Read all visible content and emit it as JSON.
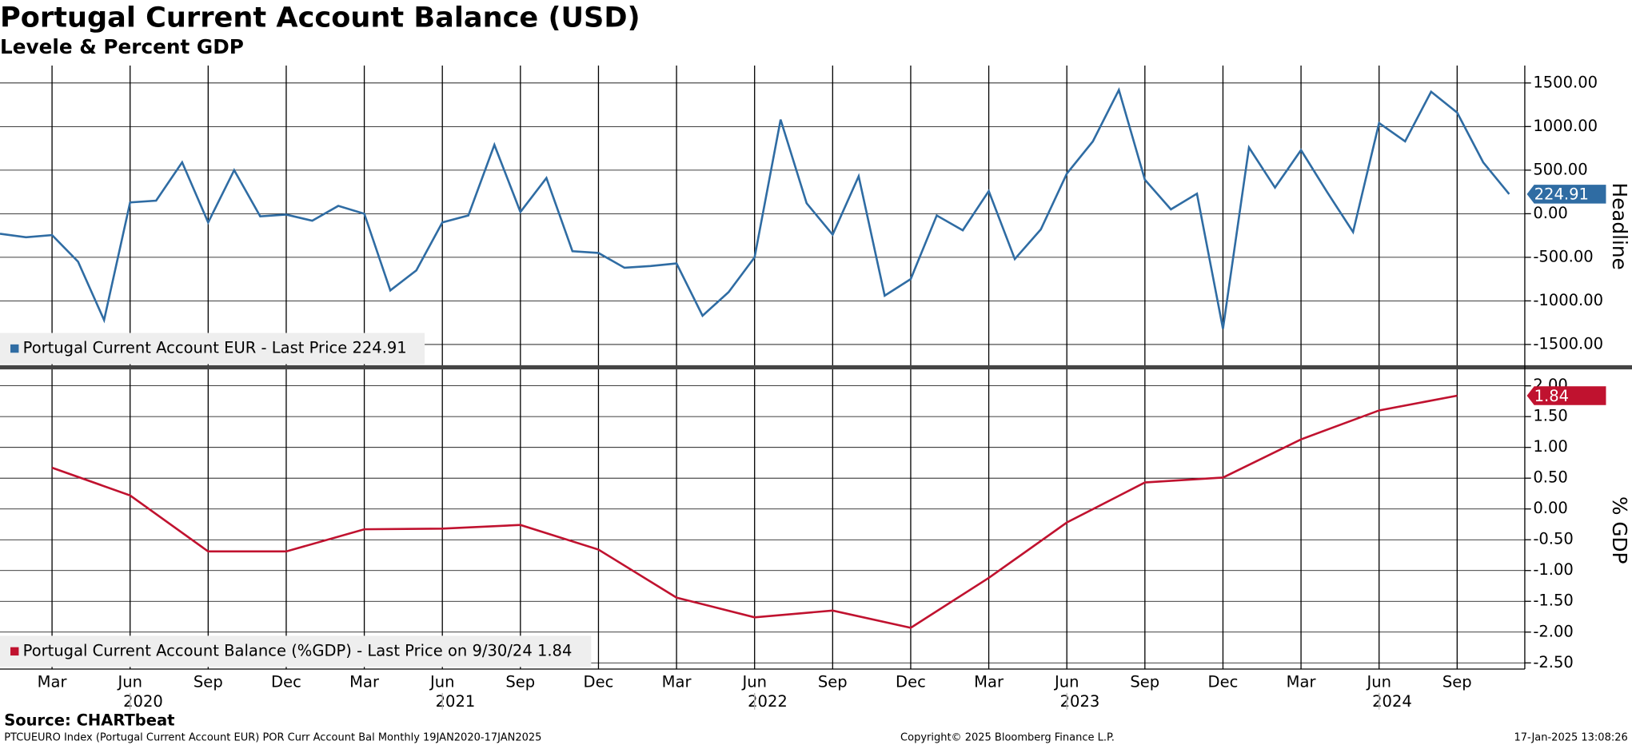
{
  "title": "Portugal Current Account Balance (USD)",
  "subtitle": "Levele & Percent GDP",
  "x_axis": {
    "month_ticks": [
      {
        "value": "2020-03",
        "label": "Mar"
      },
      {
        "value": "2020-06",
        "label": "Jun"
      },
      {
        "value": "2020-09",
        "label": "Sep"
      },
      {
        "value": "2020-12",
        "label": "Dec"
      },
      {
        "value": "2021-03",
        "label": "Mar"
      },
      {
        "value": "2021-06",
        "label": "Jun"
      },
      {
        "value": "2021-09",
        "label": "Sep"
      },
      {
        "value": "2021-12",
        "label": "Dec"
      },
      {
        "value": "2022-03",
        "label": "Mar"
      },
      {
        "value": "2022-06",
        "label": "Jun"
      },
      {
        "value": "2022-09",
        "label": "Sep"
      },
      {
        "value": "2022-12",
        "label": "Dec"
      },
      {
        "value": "2023-03",
        "label": "Mar"
      },
      {
        "value": "2023-06",
        "label": "Jun"
      },
      {
        "value": "2023-09",
        "label": "Sep"
      },
      {
        "value": "2023-12",
        "label": "Dec"
      },
      {
        "value": "2024-03",
        "label": "Mar"
      },
      {
        "value": "2024-06",
        "label": "Jun"
      },
      {
        "value": "2024-09",
        "label": "Sep"
      }
    ],
    "year_ticks": [
      2020,
      2021,
      2022,
      2023,
      2024
    ]
  },
  "chart_data": [
    {
      "type": "line",
      "ylabel": "Headline",
      "x": [
        "2020-01",
        "2020-02",
        "2020-03",
        "2020-04",
        "2020-05",
        "2020-06",
        "2020-07",
        "2020-08",
        "2020-09",
        "2020-10",
        "2020-11",
        "2020-12",
        "2021-01",
        "2021-02",
        "2021-03",
        "2021-04",
        "2021-05",
        "2021-06",
        "2021-07",
        "2021-08",
        "2021-09",
        "2021-10",
        "2021-11",
        "2021-12",
        "2022-01",
        "2022-02",
        "2022-03",
        "2022-04",
        "2022-05",
        "2022-06",
        "2022-07",
        "2022-08",
        "2022-09",
        "2022-10",
        "2022-11",
        "2022-12",
        "2023-01",
        "2023-02",
        "2023-03",
        "2023-04",
        "2023-05",
        "2023-06",
        "2023-07",
        "2023-08",
        "2023-09",
        "2023-10",
        "2023-11",
        "2023-12",
        "2024-01",
        "2024-02",
        "2024-03",
        "2024-04",
        "2024-05",
        "2024-06",
        "2024-07",
        "2024-08",
        "2024-09",
        "2024-10",
        "2024-11"
      ],
      "series": [
        {
          "name": "Portugal Current Account EUR - Last Price 224.91",
          "color": "#2f6ca3",
          "values": [
            -230,
            -270,
            -245,
            -550,
            -1220,
            130,
            150,
            590,
            -100,
            500,
            -30,
            -10,
            -80,
            90,
            0,
            -880,
            -650,
            -100,
            -20,
            790,
            20,
            410,
            -430,
            -450,
            -620,
            -600,
            -570,
            -1170,
            -900,
            -500,
            1080,
            120,
            -240,
            430,
            -940,
            -750,
            -20,
            -190,
            260,
            -520,
            -180,
            460,
            830,
            1420,
            390,
            50,
            230,
            -1320,
            760,
            300,
            730,
            250,
            -210,
            1040,
            830,
            1400,
            1160,
            590,
            224.91
          ]
        }
      ],
      "last_price": 224.91,
      "ylim": [
        -1750,
        1700
      ],
      "yticks": [
        {
          "value": 1500,
          "label": "1500.00"
        },
        {
          "value": 1000,
          "label": "1000.00"
        },
        {
          "value": 500,
          "label": "500.00"
        },
        {
          "value": 0,
          "label": "0.00"
        },
        {
          "value": -500,
          "label": "-500.00"
        },
        {
          "value": -1000,
          "label": "-1000.00"
        },
        {
          "value": -1500,
          "label": "-1500.00"
        }
      ],
      "grid": true
    },
    {
      "type": "line",
      "ylabel": "% GDP",
      "x": [
        "2020-03",
        "2020-06",
        "2020-09",
        "2020-12",
        "2021-03",
        "2021-06",
        "2021-09",
        "2021-12",
        "2022-03",
        "2022-06",
        "2022-09",
        "2022-12",
        "2023-03",
        "2023-06",
        "2023-09",
        "2023-12",
        "2024-03",
        "2024-06",
        "2024-09"
      ],
      "series": [
        {
          "name": "Portugal Current Account Balance (%GDP) - Last Price on 9/30/24 1.84",
          "color": "#c0122f",
          "values": [
            0.67,
            0.22,
            -0.69,
            -0.69,
            -0.33,
            -0.32,
            -0.26,
            -0.66,
            -1.44,
            -1.76,
            -1.65,
            -1.93,
            -1.12,
            -0.22,
            0.43,
            0.51,
            1.13,
            1.6,
            1.84
          ]
        }
      ],
      "last_price": 1.84,
      "ylim": [
        -2.6,
        2.25
      ],
      "yticks": [
        {
          "value": 2,
          "label": "2.00"
        },
        {
          "value": 1.5,
          "label": "1.50"
        },
        {
          "value": 1,
          "label": "1.00"
        },
        {
          "value": 0.5,
          "label": "0.50"
        },
        {
          "value": 0,
          "label": "0.00"
        },
        {
          "value": -0.5,
          "label": "-0.50"
        },
        {
          "value": -1,
          "label": "-1.00"
        },
        {
          "value": -1.5,
          "label": "-1.50"
        },
        {
          "value": -2,
          "label": "-2.00"
        },
        {
          "value": -2.5,
          "label": "-2.50"
        }
      ],
      "grid": true
    }
  ],
  "source": "Source: CHARTbeat",
  "footer_left": "PTCUEURO Index (Portugal Current Account EUR) POR Curr Account Bal  Monthly 19JAN2020-17JAN2025",
  "footer_center": "Copyright© 2025 Bloomberg Finance L.P.",
  "footer_right": "17-Jan-2025 13:08:26"
}
